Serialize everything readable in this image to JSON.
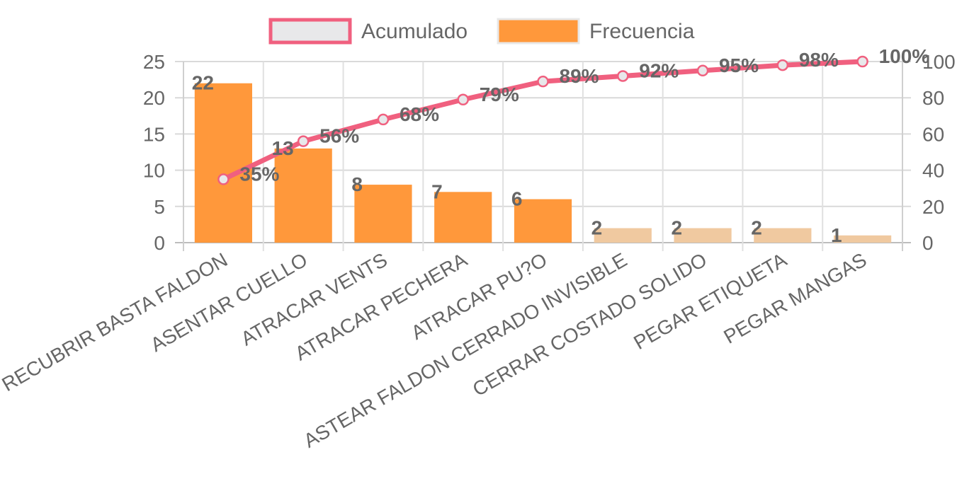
{
  "chart_data": {
    "type": "bar",
    "categories": [
      "RECUBRIR BASTA FALDON",
      "ASENTAR CUELLO",
      "ATRACAR  VENTS",
      "ATRACAR PECHERA",
      "ATRACAR PU?O",
      "ASTEAR FALDON CERRADO INVISIBLE",
      "CERRAR COSTADO SOLIDO",
      "PEGAR ETIQUETA",
      "PEGAR MANGAS"
    ],
    "series": [
      {
        "name": "Acumulado",
        "type": "line",
        "axis": "right",
        "values": [
          35,
          56,
          68,
          79,
          89,
          92,
          95,
          98,
          100
        ],
        "labels": [
          "35%",
          "56%",
          "68%",
          "79%",
          "89%",
          "92%",
          "95%",
          "98%",
          "100%"
        ],
        "color": "#f0607f"
      },
      {
        "name": "Frecuencia",
        "type": "bar",
        "axis": "left",
        "values": [
          22,
          13,
          8,
          7,
          6,
          2,
          2,
          2,
          1
        ],
        "labels": [
          "22",
          "13",
          "8",
          "7",
          "6",
          "2",
          "2",
          "2",
          "1"
        ],
        "color": "#ff983b",
        "light_color": "#f0c9a0"
      }
    ],
    "highlight_count": 5,
    "y_left": {
      "ylim": [
        0,
        25
      ],
      "ticks": [
        "0",
        "5",
        "10",
        "15",
        "20",
        "25"
      ]
    },
    "y_right": {
      "ylim": [
        0,
        100
      ],
      "ticks": [
        "0",
        "20",
        "40",
        "60",
        "80",
        "100"
      ]
    },
    "grid": true,
    "legend_position": "top",
    "line_marker_fill": "#e8e8ea"
  }
}
